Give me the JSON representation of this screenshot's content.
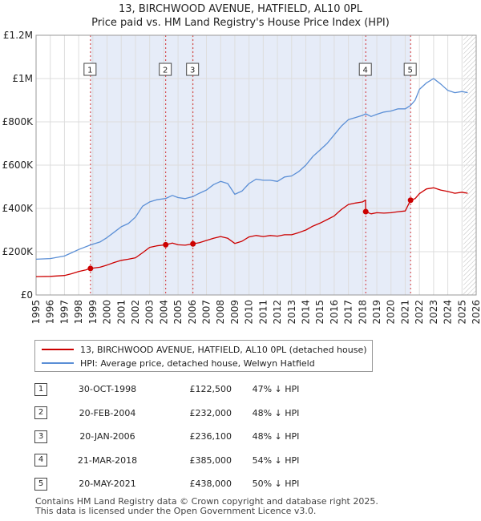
{
  "title": "13, BIRCHWOOD AVENUE, HATFIELD, AL10 0PL",
  "subtitle": "Price paid vs. HM Land Registry's House Price Index (HPI)",
  "legend": [
    {
      "label": "13, BIRCHWOOD AVENUE, HATFIELD, AL10 0PL (detached house)",
      "color": "#cc0000"
    },
    {
      "label": "HPI: Average price, detached house, Welwyn Hatfield",
      "color": "#5b8fd6"
    }
  ],
  "transactions": [
    {
      "num": "1",
      "date": "30-OCT-1998",
      "price": "£122,500",
      "hpi": "47% ↓ HPI"
    },
    {
      "num": "2",
      "date": "20-FEB-2004",
      "price": "£232,000",
      "hpi": "48% ↓ HPI"
    },
    {
      "num": "3",
      "date": "20-JAN-2006",
      "price": "£236,100",
      "hpi": "48% ↓ HPI"
    },
    {
      "num": "4",
      "date": "21-MAR-2018",
      "price": "£385,000",
      "hpi": "54% ↓ HPI"
    },
    {
      "num": "5",
      "date": "20-MAY-2021",
      "price": "£438,000",
      "hpi": "50% ↓ HPI"
    }
  ],
  "footer": {
    "line1": "Contains HM Land Registry data © Crown copyright and database right 2025.",
    "line2": "This data is licensed under the Open Government Licence v3.0."
  },
  "chart_data": {
    "type": "line",
    "title": "13, BIRCHWOOD AVENUE, HATFIELD, AL10 0PL",
    "subtitle": "Price paid vs. HM Land Registry's House Price Index (HPI)",
    "xlabel": "",
    "ylabel": "",
    "xlim": [
      1995,
      2026
    ],
    "ylim": [
      0,
      1200000
    ],
    "x_ticks": [
      1995,
      1996,
      1997,
      1998,
      1999,
      2000,
      2001,
      2002,
      2003,
      2004,
      2005,
      2006,
      2007,
      2008,
      2009,
      2010,
      2011,
      2012,
      2013,
      2014,
      2015,
      2016,
      2017,
      2018,
      2019,
      2020,
      2021,
      2022,
      2023,
      2024,
      2025,
      2026
    ],
    "y_ticks": [
      {
        "value": 0,
        "label": "£0"
      },
      {
        "value": 200000,
        "label": "£200K"
      },
      {
        "value": 400000,
        "label": "£400K"
      },
      {
        "value": 600000,
        "label": "£600K"
      },
      {
        "value": 800000,
        "label": "£800K"
      },
      {
        "value": 1000000,
        "label": "£1M"
      },
      {
        "value": 1200000,
        "label": "£1.2M"
      }
    ],
    "grid": true,
    "shade_between": [
      1998.83,
      2021.38
    ],
    "forecast_hatch_from": 2025.1,
    "legend_placement": "below chart",
    "series": [
      {
        "name": "13, BIRCHWOOD AVENUE, HATFIELD, AL10 0PL (detached house)",
        "color": "#cc0000",
        "points": [
          [
            1995.0,
            85000
          ],
          [
            1996.0,
            86000
          ],
          [
            1997.0,
            90000
          ],
          [
            1997.5,
            98000
          ],
          [
            1998.0,
            108000
          ],
          [
            1998.5,
            116000
          ],
          [
            1998.83,
            122500
          ],
          [
            1999.5,
            128000
          ],
          [
            2000.0,
            138000
          ],
          [
            2000.5,
            150000
          ],
          [
            2001.0,
            160000
          ],
          [
            2001.5,
            165000
          ],
          [
            2002.0,
            172000
          ],
          [
            2002.5,
            195000
          ],
          [
            2003.0,
            220000
          ],
          [
            2003.5,
            227000
          ],
          [
            2004.13,
            232000
          ],
          [
            2004.6,
            240000
          ],
          [
            2005.0,
            232000
          ],
          [
            2005.5,
            230000
          ],
          [
            2006.05,
            236100
          ],
          [
            2006.5,
            242000
          ],
          [
            2007.0,
            252000
          ],
          [
            2007.5,
            262000
          ],
          [
            2008.0,
            270000
          ],
          [
            2008.5,
            262000
          ],
          [
            2009.0,
            238000
          ],
          [
            2009.5,
            248000
          ],
          [
            2010.0,
            268000
          ],
          [
            2010.5,
            275000
          ],
          [
            2011.0,
            270000
          ],
          [
            2011.5,
            275000
          ],
          [
            2012.0,
            272000
          ],
          [
            2012.5,
            278000
          ],
          [
            2013.0,
            278000
          ],
          [
            2013.5,
            288000
          ],
          [
            2014.0,
            300000
          ],
          [
            2014.5,
            318000
          ],
          [
            2015.0,
            332000
          ],
          [
            2015.5,
            348000
          ],
          [
            2016.0,
            365000
          ],
          [
            2016.5,
            395000
          ],
          [
            2017.0,
            418000
          ],
          [
            2017.5,
            425000
          ],
          [
            2018.0,
            430000
          ],
          [
            2018.2,
            438000
          ],
          [
            2018.22,
            385000
          ],
          [
            2018.6,
            375000
          ],
          [
            2019.0,
            380000
          ],
          [
            2019.5,
            378000
          ],
          [
            2020.0,
            380000
          ],
          [
            2020.5,
            385000
          ],
          [
            2021.0,
            388000
          ],
          [
            2021.38,
            438000
          ],
          [
            2021.7,
            445000
          ],
          [
            2022.0,
            468000
          ],
          [
            2022.5,
            490000
          ],
          [
            2023.0,
            495000
          ],
          [
            2023.5,
            485000
          ],
          [
            2024.0,
            478000
          ],
          [
            2024.5,
            470000
          ],
          [
            2025.0,
            475000
          ],
          [
            2025.4,
            470000
          ]
        ]
      },
      {
        "name": "HPI: Average price, detached house, Welwyn Hatfield",
        "color": "#5b8fd6",
        "points": [
          [
            1995.0,
            165000
          ],
          [
            1996.0,
            168000
          ],
          [
            1997.0,
            180000
          ],
          [
            1997.5,
            195000
          ],
          [
            1998.0,
            210000
          ],
          [
            1998.83,
            231000
          ],
          [
            1999.5,
            245000
          ],
          [
            2000.0,
            265000
          ],
          [
            2000.5,
            290000
          ],
          [
            2001.0,
            315000
          ],
          [
            2001.5,
            330000
          ],
          [
            2002.0,
            360000
          ],
          [
            2002.5,
            410000
          ],
          [
            2003.0,
            430000
          ],
          [
            2003.5,
            440000
          ],
          [
            2004.13,
            446000
          ],
          [
            2004.6,
            460000
          ],
          [
            2005.0,
            450000
          ],
          [
            2005.5,
            445000
          ],
          [
            2006.05,
            455000
          ],
          [
            2006.5,
            470000
          ],
          [
            2007.0,
            485000
          ],
          [
            2007.5,
            510000
          ],
          [
            2008.0,
            525000
          ],
          [
            2008.5,
            515000
          ],
          [
            2009.0,
            465000
          ],
          [
            2009.5,
            480000
          ],
          [
            2010.0,
            515000
          ],
          [
            2010.5,
            535000
          ],
          [
            2011.0,
            530000
          ],
          [
            2011.5,
            530000
          ],
          [
            2012.0,
            525000
          ],
          [
            2012.5,
            545000
          ],
          [
            2013.0,
            550000
          ],
          [
            2013.5,
            570000
          ],
          [
            2014.0,
            600000
          ],
          [
            2014.5,
            640000
          ],
          [
            2015.0,
            670000
          ],
          [
            2015.5,
            700000
          ],
          [
            2016.0,
            740000
          ],
          [
            2016.5,
            780000
          ],
          [
            2017.0,
            810000
          ],
          [
            2017.5,
            820000
          ],
          [
            2018.0,
            830000
          ],
          [
            2018.22,
            837000
          ],
          [
            2018.6,
            825000
          ],
          [
            2019.0,
            835000
          ],
          [
            2019.5,
            845000
          ],
          [
            2020.0,
            850000
          ],
          [
            2020.5,
            860000
          ],
          [
            2021.0,
            860000
          ],
          [
            2021.38,
            876000
          ],
          [
            2021.7,
            900000
          ],
          [
            2022.0,
            950000
          ],
          [
            2022.5,
            980000
          ],
          [
            2023.0,
            1000000
          ],
          [
            2023.5,
            975000
          ],
          [
            2024.0,
            945000
          ],
          [
            2024.5,
            935000
          ],
          [
            2025.0,
            940000
          ],
          [
            2025.4,
            935000
          ]
        ]
      }
    ],
    "sales": [
      {
        "num": "1",
        "x": 1998.83,
        "y": 122500
      },
      {
        "num": "2",
        "x": 2004.13,
        "y": 232000
      },
      {
        "num": "3",
        "x": 2006.05,
        "y": 236100
      },
      {
        "num": "4",
        "x": 2018.22,
        "y": 385000
      },
      {
        "num": "5",
        "x": 2021.38,
        "y": 438000
      }
    ]
  }
}
